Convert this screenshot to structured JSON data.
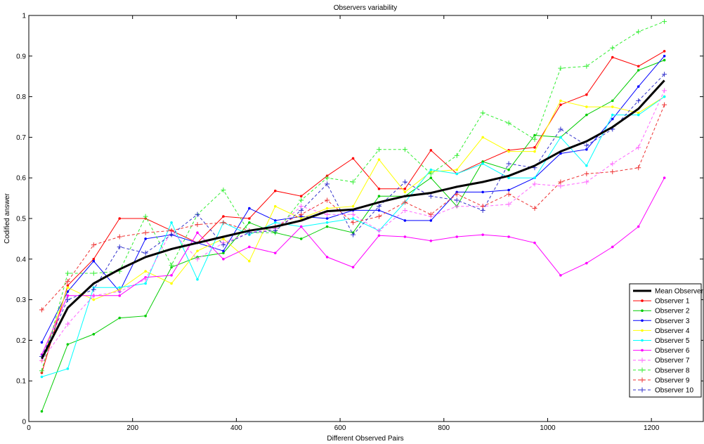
{
  "chart_data": {
    "type": "line",
    "title": "Observers variability",
    "xlabel": "Different Observed Pairs",
    "ylabel": "Codified answer",
    "xlim": [
      0,
      1300
    ],
    "ylim": [
      0,
      1
    ],
    "xticks": [
      "0",
      "200",
      "400",
      "600",
      "800",
      "1000",
      "1200"
    ],
    "yticks": [
      "0",
      "0.1",
      "0.2",
      "0.3",
      "0.4",
      "0.5",
      "0.6",
      "0.7",
      "0.8",
      "0.9",
      "1"
    ],
    "grid": false,
    "legend_position": "bottom-right",
    "x": [
      25,
      75,
      125,
      175,
      225,
      275,
      325,
      375,
      425,
      475,
      525,
      575,
      625,
      675,
      725,
      775,
      825,
      875,
      925,
      975,
      1025,
      1075,
      1125,
      1175,
      1225
    ],
    "series": [
      {
        "name": "Mean Observer",
        "color": "#000000",
        "dash": false,
        "marker": "none",
        "width": 3,
        "values": [
          0.155,
          0.28,
          0.34,
          0.375,
          0.405,
          0.425,
          0.44,
          0.455,
          0.47,
          0.48,
          0.495,
          0.518,
          0.522,
          0.54,
          0.555,
          0.563,
          0.578,
          0.59,
          0.605,
          0.63,
          0.665,
          0.69,
          0.725,
          0.77,
          0.84
        ]
      },
      {
        "name": "Observer 1",
        "color": "#ff0000",
        "dash": false,
        "marker": "dot",
        "width": 1,
        "values": [
          0.12,
          0.335,
          0.4,
          0.5,
          0.5,
          0.47,
          0.44,
          0.505,
          0.5,
          0.568,
          0.555,
          0.605,
          0.648,
          0.573,
          0.573,
          0.668,
          0.61,
          0.64,
          0.668,
          0.675,
          0.78,
          0.805,
          0.897,
          0.875,
          0.912
        ]
      },
      {
        "name": "Observer 2",
        "color": "#00cc00",
        "dash": false,
        "marker": "dot",
        "width": 1,
        "values": [
          0.025,
          0.19,
          0.215,
          0.255,
          0.26,
          0.38,
          0.405,
          0.415,
          0.49,
          0.465,
          0.45,
          0.48,
          0.465,
          0.555,
          0.555,
          0.6,
          0.53,
          0.64,
          0.62,
          0.705,
          0.7,
          0.755,
          0.79,
          0.865,
          0.89
        ]
      },
      {
        "name": "Observer 3",
        "color": "#0000ff",
        "dash": false,
        "marker": "dot",
        "width": 1,
        "values": [
          0.195,
          0.32,
          0.395,
          0.32,
          0.45,
          0.46,
          0.44,
          0.42,
          0.525,
          0.495,
          0.505,
          0.5,
          0.52,
          0.52,
          0.495,
          0.495,
          0.565,
          0.565,
          0.57,
          0.6,
          0.66,
          0.67,
          0.745,
          0.825,
          0.9
        ]
      },
      {
        "name": "Observer 4",
        "color": "#ffff00",
        "dash": false,
        "marker": "dot",
        "width": 1,
        "values": [
          0.15,
          0.33,
          0.3,
          0.325,
          0.37,
          0.34,
          0.42,
          0.45,
          0.395,
          0.53,
          0.5,
          0.525,
          0.53,
          0.645,
          0.565,
          0.615,
          0.62,
          0.7,
          0.665,
          0.665,
          0.79,
          0.775,
          0.775,
          0.76,
          0.8
        ]
      },
      {
        "name": "Observer 5",
        "color": "#00ffff",
        "dash": false,
        "marker": "dot",
        "width": 1,
        "values": [
          0.11,
          0.13,
          0.33,
          0.33,
          0.34,
          0.49,
          0.35,
          0.49,
          0.46,
          0.49,
          0.48,
          0.49,
          0.5,
          0.47,
          0.54,
          0.62,
          0.61,
          0.635,
          0.6,
          0.6,
          0.7,
          0.63,
          0.755,
          0.755,
          0.8
        ]
      },
      {
        "name": "Observer 6",
        "color": "#ff00ff",
        "dash": false,
        "marker": "dot",
        "width": 1,
        "values": [
          0.165,
          0.31,
          0.31,
          0.31,
          0.355,
          0.36,
          0.465,
          0.4,
          0.43,
          0.415,
          0.48,
          0.405,
          0.38,
          0.458,
          0.455,
          0.445,
          0.455,
          0.46,
          0.455,
          0.44,
          0.36,
          0.39,
          0.43,
          0.48,
          0.6
        ]
      },
      {
        "name": "Observer 7",
        "color": "#ff66ff",
        "dash": true,
        "marker": "plus",
        "width": 1,
        "values": [
          0.15,
          0.24,
          0.31,
          0.32,
          0.35,
          0.47,
          0.4,
          0.44,
          0.465,
          0.475,
          0.53,
          0.51,
          0.51,
          0.47,
          0.52,
          0.505,
          0.53,
          0.53,
          0.535,
          0.585,
          0.58,
          0.59,
          0.635,
          0.675,
          0.815
        ]
      },
      {
        "name": "Observer 8",
        "color": "#33ee33",
        "dash": true,
        "marker": "plus",
        "width": 1,
        "values": [
          0.125,
          0.365,
          0.365,
          0.37,
          0.505,
          0.385,
          0.51,
          0.57,
          0.465,
          0.465,
          0.545,
          0.6,
          0.59,
          0.67,
          0.67,
          0.61,
          0.655,
          0.76,
          0.735,
          0.695,
          0.87,
          0.875,
          0.92,
          0.96,
          0.985
        ]
      },
      {
        "name": "Observer 9",
        "color": "#ee3333",
        "dash": true,
        "marker": "plus",
        "width": 1,
        "values": [
          0.275,
          0.345,
          0.435,
          0.455,
          0.465,
          0.47,
          0.485,
          0.49,
          0.47,
          0.48,
          0.51,
          0.545,
          0.49,
          0.505,
          0.54,
          0.51,
          0.56,
          0.53,
          0.56,
          0.525,
          0.59,
          0.61,
          0.615,
          0.625,
          0.78
        ]
      },
      {
        "name": "Observer 10",
        "color": "#3333cc",
        "dash": true,
        "marker": "plus",
        "width": 1,
        "values": [
          0.16,
          0.3,
          0.325,
          0.43,
          0.415,
          0.46,
          0.51,
          0.435,
          0.465,
          0.47,
          0.52,
          0.585,
          0.46,
          0.53,
          0.59,
          0.555,
          0.545,
          0.52,
          0.635,
          0.625,
          0.72,
          0.68,
          0.72,
          0.79,
          0.855
        ]
      }
    ]
  }
}
